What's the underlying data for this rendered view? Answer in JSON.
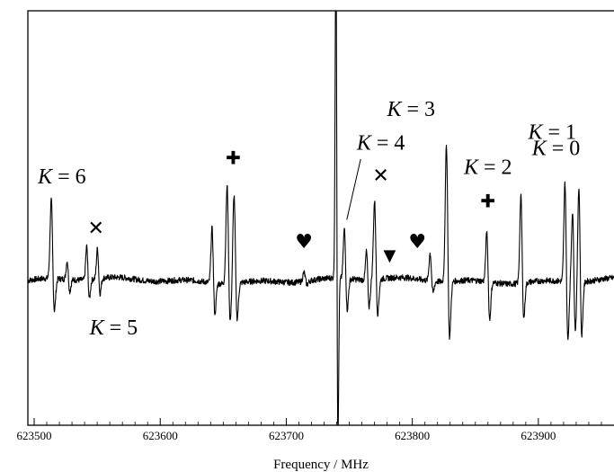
{
  "chart_data": {
    "type": "line",
    "xlabel": "Frequency / MHz",
    "ylabel": "",
    "xlim": [
      623495,
      623960
    ],
    "ylim": [
      -1.0,
      1.0
    ],
    "x_ticks": [
      623500,
      623600,
      623700,
      623800,
      623900
    ],
    "x_tick_labels": [
      "623500",
      "623600",
      "623700",
      "623800",
      "623900"
    ],
    "grid": false,
    "baseline": 0.0,
    "lines": [
      {
        "x": 623514.5,
        "pos": 0.62,
        "neg": -0.28,
        "w": 1.4
      },
      {
        "x": 623527.0,
        "pos": 0.15,
        "neg": -0.1,
        "w": 1.2
      },
      {
        "x": 623542.5,
        "pos": 0.27,
        "neg": -0.16,
        "w": 1.2
      },
      {
        "x": 623551.0,
        "pos": 0.24,
        "neg": -0.13,
        "w": 1.2
      },
      {
        "x": 623642.0,
        "pos": 0.44,
        "neg": -0.26,
        "w": 1.3
      },
      {
        "x": 623654.0,
        "pos": 0.77,
        "neg": -0.33,
        "w": 1.4
      },
      {
        "x": 623659.5,
        "pos": 0.7,
        "neg": -0.31,
        "w": 1.4
      },
      {
        "x": 623715.0,
        "pos": 0.07,
        "neg": -0.03,
        "w": 1.4
      },
      {
        "x": 623747.0,
        "pos": 0.4,
        "neg": -0.26,
        "w": 1.3
      },
      {
        "x": 623764.5,
        "pos": 0.24,
        "neg": -0.22,
        "w": 1.2
      },
      {
        "x": 623771.0,
        "pos": 0.62,
        "neg": -0.3,
        "w": 1.4
      },
      {
        "x": 623815.0,
        "pos": 0.22,
        "neg": -0.1,
        "w": 1.3
      },
      {
        "x": 623828.0,
        "pos": 1.08,
        "neg": -0.49,
        "w": 1.4
      },
      {
        "x": 623860.0,
        "pos": 0.41,
        "neg": -0.31,
        "w": 1.3
      },
      {
        "x": 623887.0,
        "pos": 0.69,
        "neg": -0.31,
        "w": 1.3
      },
      {
        "x": 623922.0,
        "pos": 0.8,
        "neg": -0.49,
        "w": 1.3
      },
      {
        "x": 623928.0,
        "pos": 0.57,
        "neg": -0.4,
        "w": 1.3
      },
      {
        "x": 623933.0,
        "pos": 0.77,
        "neg": -0.45,
        "w": 1.3
      }
    ],
    "big_feature": {
      "x": 623740.0,
      "pos": 2.7,
      "neg": -1.4,
      "w": 0.9
    },
    "noise_amplitude": 0.022,
    "annotations": [
      {
        "kind": "k",
        "label_k": "K",
        "label_rest": " = 6",
        "x": 623522,
        "y": 0.72
      },
      {
        "kind": "k",
        "label_k": "K",
        "label_rest": " = 5",
        "x": 623563,
        "y": -0.4
      },
      {
        "kind": "k",
        "label_k": "K",
        "label_rest": " = 4",
        "x": 623775,
        "y": 0.97
      },
      {
        "kind": "k",
        "label_k": "K",
        "label_rest": " = 3",
        "x": 623799,
        "y": 1.22
      },
      {
        "kind": "k",
        "label_k": "K",
        "label_rest": " = 2",
        "x": 623860,
        "y": 0.79
      },
      {
        "kind": "k",
        "label_k": "K",
        "label_rest": " = 1",
        "x": 623911,
        "y": 1.05
      },
      {
        "kind": "k",
        "label_k": "K",
        "label_rest": " = 0",
        "x": 623914,
        "y": 0.93
      },
      {
        "kind": "symbol",
        "symbol": "✕",
        "x": 623549,
        "y": 0.38
      },
      {
        "kind": "symbol",
        "symbol": "✕",
        "x": 623775,
        "y": 0.77
      },
      {
        "kind": "symbol",
        "symbol": "✚",
        "x": 623658,
        "y": 0.9
      },
      {
        "kind": "symbol",
        "symbol": "✚",
        "x": 623860,
        "y": 0.58
      },
      {
        "kind": "symbol",
        "symbol": "♥",
        "x": 623714,
        "y": 0.28
      },
      {
        "kind": "symbol",
        "symbol": "♥",
        "x": 623804,
        "y": 0.28
      },
      {
        "kind": "symbol",
        "symbol": "▼",
        "x": 623782,
        "y": 0.18
      }
    ],
    "leader_line": {
      "from": [
        623759,
        0.9
      ],
      "to": [
        623748,
        0.45
      ]
    }
  },
  "colors": {
    "line": "#000000",
    "axis": "#000000",
    "background": "#ffffff"
  }
}
